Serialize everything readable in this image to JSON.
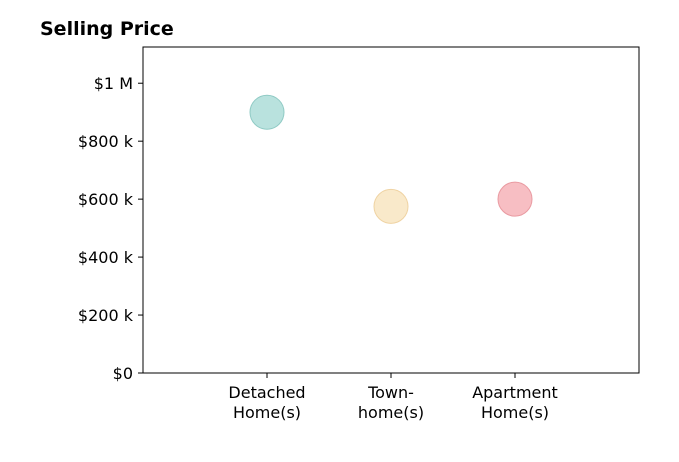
{
  "chart_data": {
    "type": "scatter",
    "title": "Selling Price",
    "xlabel": "",
    "ylabel": "",
    "categories": [
      [
        "Detached",
        "Home(s)"
      ],
      [
        "Town-",
        "home(s)"
      ],
      [
        "Apartment",
        "Home(s)"
      ]
    ],
    "values": [
      900000,
      575000,
      600000
    ],
    "colors": [
      "#a8dbd6",
      "#f8e3bd",
      "#f5aeb4"
    ],
    "edge_colors": [
      "#8fcac4",
      "#efd3a3",
      "#e99aa1"
    ],
    "ylim": [
      0,
      1125000
    ],
    "xlim": [
      0,
      4
    ],
    "category_positions": [
      1,
      2,
      3
    ],
    "yticks": [
      0,
      200000,
      400000,
      600000,
      800000,
      1000000
    ],
    "ytick_labels": [
      "$0",
      "$200 k",
      "$400 k",
      "$600 k",
      "$800 k",
      "$1 M"
    ],
    "grid": false,
    "legend": false
  }
}
